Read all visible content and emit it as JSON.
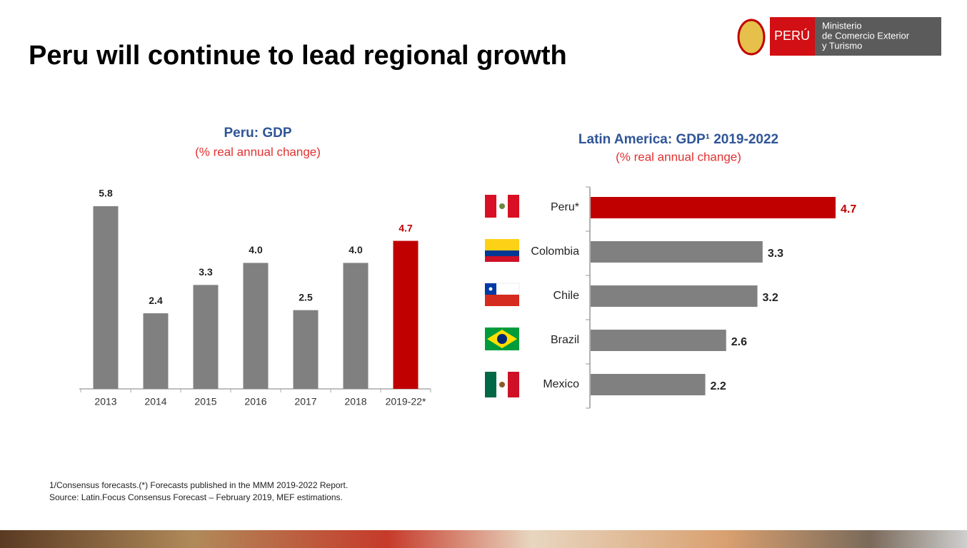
{
  "title": "Peru will continue to lead regional growth",
  "logo": {
    "brand": "PERÚ",
    "ministry": [
      "Ministerio",
      "de Comercio Exterior",
      "y Turismo"
    ]
  },
  "notes": [
    "1/Consensus forecasts.(*) Forecasts published in the MMM 2019-2022 Report.",
    "Source: Latin.Focus Consensus Forecast – February 2019, MEF estimations."
  ],
  "chart_data": [
    {
      "type": "bar",
      "title": "Peru: GDP",
      "subtitle": "(% real annual change)",
      "categories": [
        "2013",
        "2014",
        "2015",
        "2016",
        "2017",
        "2018",
        "2019-22*"
      ],
      "values": [
        5.8,
        2.4,
        3.3,
        4.0,
        2.5,
        4.0,
        4.7
      ],
      "value_labels": [
        "5.8",
        "2.4",
        "3.3",
        "4.0",
        "2.5",
        "4.0",
        "4.7"
      ],
      "colors": [
        "#808080",
        "#808080",
        "#808080",
        "#808080",
        "#808080",
        "#808080",
        "#c00000"
      ]
    },
    {
      "type": "hbar",
      "title": "Latin America: GDP¹ 2019-2022",
      "subtitle": "(% real annual change)",
      "categories": [
        "Peru*",
        "Colombia",
        "Chile",
        "Brazil",
        "Mexico"
      ],
      "values": [
        4.7,
        3.3,
        3.2,
        2.6,
        2.2
      ],
      "value_labels": [
        "4.7",
        "3.3",
        "3.2",
        "2.6",
        "2.2"
      ],
      "colors": [
        "#c00000",
        "#808080",
        "#808080",
        "#808080",
        "#808080"
      ]
    }
  ]
}
